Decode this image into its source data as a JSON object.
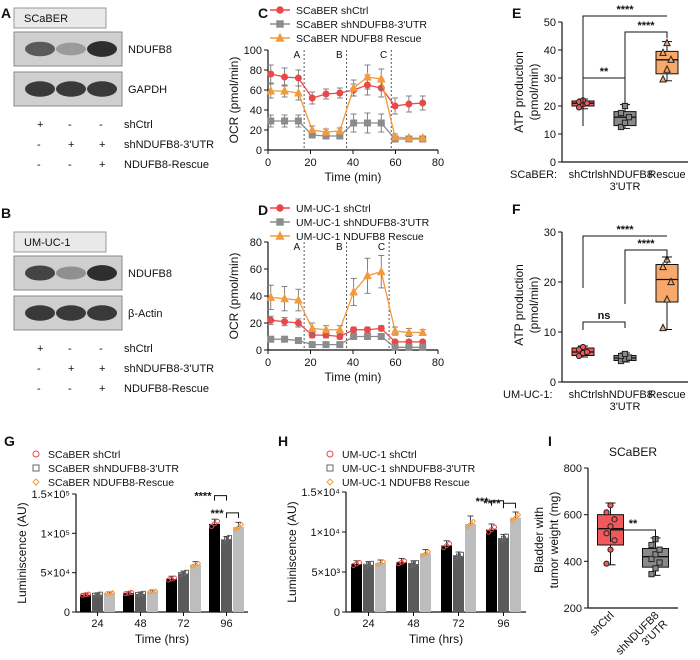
{
  "panels": {
    "A": {
      "letter": "A",
      "cell": "SCaBER",
      "blots": [
        "NDUFB8",
        "GAPDH"
      ],
      "conditions": [
        "shCtrl",
        "shNDUFB8-3'UTR",
        "NDUFB8-Rescue"
      ],
      "matrix": [
        [
          "+",
          "-",
          "-"
        ],
        [
          "-",
          "+",
          "+"
        ],
        [
          "-",
          "-",
          "+"
        ]
      ],
      "band_intensity": [
        [
          0.75,
          0.45,
          0.95
        ],
        [
          0.9,
          0.9,
          0.9
        ]
      ]
    },
    "B": {
      "letter": "B",
      "cell": "UM-UC-1",
      "blots": [
        "NDUFB8",
        "β-Actin"
      ],
      "conditions": [
        "shCtrl",
        "shNDUFB8-3'UTR",
        "NDUFB8-Rescue"
      ],
      "matrix": [
        [
          "+",
          "-",
          "-"
        ],
        [
          "-",
          "+",
          "+"
        ],
        [
          "-",
          "-",
          "+"
        ]
      ],
      "band_intensity": [
        [
          0.85,
          0.5,
          0.95
        ],
        [
          0.9,
          0.9,
          0.9
        ]
      ]
    }
  },
  "colors": {
    "red": "#e8484a",
    "gray": "#8c8c8c",
    "orange": "#f39a3c",
    "boxRed": "#f2595a",
    "boxGray": "#8a8a8a",
    "boxOrange": "#f7a86a",
    "black": "#000000",
    "darkgray": "#5a5a5a",
    "lightgray": "#bdbdbd"
  },
  "chart_data": [
    {
      "id": "C",
      "type": "line",
      "xlabel": "Time (min)",
      "ylabel": "OCR (pmol/min)",
      "xlim": [
        0,
        80
      ],
      "ylim": [
        0,
        100
      ],
      "xticks": [
        0,
        20,
        40,
        60,
        80
      ],
      "yticks": [
        0,
        20,
        40,
        60,
        80,
        100
      ],
      "markers": [
        {
          "label": "A",
          "x": 17
        },
        {
          "label": "B",
          "x": 37
        },
        {
          "label": "C",
          "x": 58
        }
      ],
      "x": [
        1.3,
        7.8,
        14.3,
        20.8,
        27.3,
        33.8,
        40.3,
        46.8,
        53.3,
        59.8,
        66.3,
        72.8
      ],
      "series": [
        {
          "name": "SCaBER shCtrl",
          "color": "red",
          "marker": "circle",
          "values": [
            76,
            73,
            72,
            52,
            56,
            57,
            60,
            65,
            62,
            44,
            46,
            47
          ],
          "err": [
            9,
            9,
            8,
            6,
            5,
            5,
            6,
            10,
            9,
            8,
            8,
            7
          ]
        },
        {
          "name": "SCaBER shNDUFB8-3'UTR",
          "color": "gray",
          "marker": "square",
          "values": [
            29,
            29,
            29,
            15,
            14,
            14,
            27,
            27,
            27,
            11,
            11,
            11
          ],
          "err": [
            6,
            6,
            6,
            3,
            3,
            3,
            9,
            10,
            9,
            2,
            2,
            2
          ]
        },
        {
          "name": "SCaBER NDUFB8 Rescue",
          "color": "orange",
          "marker": "triangle",
          "values": [
            59,
            59,
            57,
            20,
            18,
            19,
            62,
            73,
            71,
            13,
            12,
            12
          ],
          "err": [
            7,
            6,
            7,
            4,
            3,
            3,
            8,
            12,
            10,
            3,
            2,
            2
          ]
        }
      ]
    },
    {
      "id": "D",
      "type": "line",
      "xlabel": "Time (min)",
      "ylabel": "OCR (pmol/min)",
      "xlim": [
        0,
        80
      ],
      "ylim": [
        0,
        80
      ],
      "xticks": [
        0,
        20,
        40,
        60,
        80
      ],
      "yticks": [
        0,
        20,
        40,
        60,
        80
      ],
      "markers": [
        {
          "label": "A",
          "x": 17
        },
        {
          "label": "B",
          "x": 37
        },
        {
          "label": "C",
          "x": 57
        }
      ],
      "x": [
        1.3,
        7.8,
        14.3,
        20.8,
        27.3,
        33.8,
        40.3,
        46.8,
        53.3,
        59.8,
        66.3,
        72.8
      ],
      "series": [
        {
          "name": "UM-UC-1 shCtrl",
          "color": "red",
          "marker": "circle",
          "values": [
            22,
            21,
            20,
            11,
            11,
            10,
            15,
            15,
            16,
            6,
            6,
            6
          ],
          "err": [
            3,
            3,
            3,
            2,
            2,
            2,
            2,
            2,
            2,
            1,
            1,
            1
          ]
        },
        {
          "name": "UM-UC-1 shNDUFB8-3'UTR",
          "color": "gray",
          "marker": "square",
          "values": [
            8,
            8,
            7,
            4,
            4,
            4,
            10,
            10,
            10,
            2,
            2,
            2
          ],
          "err": [
            2,
            2,
            2,
            1,
            1,
            1,
            2,
            2,
            2,
            1,
            1,
            1
          ]
        },
        {
          "name": "UM-UC-1 NDUFB8 Rescue",
          "color": "orange",
          "marker": "triangle",
          "values": [
            39,
            38,
            37,
            16,
            15,
            15,
            43,
            55,
            58,
            14,
            13,
            13
          ],
          "err": [
            9,
            9,
            8,
            4,
            3,
            3,
            10,
            13,
            12,
            3,
            3,
            2
          ]
        }
      ]
    },
    {
      "id": "E",
      "type": "box",
      "ylabel": "ATP production (pmol/min)",
      "ylim": [
        0,
        50
      ],
      "yticks": [
        0,
        10,
        20,
        30,
        40,
        50
      ],
      "group_prefix": "SCaBER:",
      "categories": [
        "shCtrl",
        "shNDUFB8\n3'UTR",
        "Rescue"
      ],
      "boxes": [
        {
          "color": "boxRed",
          "marker": "circle",
          "min": 19,
          "q1": 20,
          "median": 21,
          "q3": 21.8,
          "max": 22.5,
          "points": [
            19.5,
            20.5,
            21,
            21.5,
            22
          ]
        },
        {
          "color": "boxGray",
          "marker": "square",
          "min": 12,
          "q1": 13,
          "median": 16,
          "q3": 18,
          "max": 20.5,
          "points": [
            12.5,
            14,
            16,
            17.5,
            20
          ]
        },
        {
          "color": "boxOrange",
          "marker": "triangle",
          "min": 29,
          "q1": 31.5,
          "median": 36.5,
          "q3": 39.5,
          "max": 43,
          "points": [
            29.5,
            33,
            36.5,
            39,
            42.5
          ]
        }
      ],
      "brackets": [
        {
          "from": 0,
          "to": 2,
          "label": "****"
        },
        {
          "from": 1,
          "to": 2,
          "label": "****"
        },
        {
          "from": 0,
          "to": 1,
          "label": "**"
        }
      ]
    },
    {
      "id": "F",
      "type": "box",
      "ylabel": "ATP production (pmol/min)",
      "ylim": [
        0,
        30
      ],
      "yticks": [
        0,
        10,
        20,
        30
      ],
      "group_prefix": "UM-UC-1:",
      "categories": [
        "shCtrl",
        "shNDUFB8\n3'UTR",
        "Rescue"
      ],
      "boxes": [
        {
          "color": "boxRed",
          "marker": "circle",
          "min": 5,
          "q1": 5.3,
          "median": 6,
          "q3": 6.8,
          "max": 7.2,
          "points": [
            5.2,
            5.8,
            6,
            6.5,
            7
          ]
        },
        {
          "color": "boxGray",
          "marker": "square",
          "min": 4,
          "q1": 4.3,
          "median": 4.8,
          "q3": 5.3,
          "max": 5.8,
          "points": [
            4.2,
            4.6,
            4.9,
            5.2,
            5.6
          ]
        },
        {
          "color": "boxOrange",
          "marker": "triangle",
          "min": 10.5,
          "q1": 16,
          "median": 20.5,
          "q3": 23.5,
          "max": 25,
          "points": [
            10.8,
            16.5,
            20,
            23,
            24.5
          ]
        }
      ],
      "brackets": [
        {
          "from": 0,
          "to": 2,
          "label": "****"
        },
        {
          "from": 1,
          "to": 2,
          "label": "****"
        },
        {
          "from": 0,
          "to": 1,
          "label": "ns"
        }
      ]
    },
    {
      "id": "G",
      "type": "bar",
      "xlabel": "Time (hrs)",
      "ylabel": "Luminiscence (AU)",
      "ylim": [
        0,
        150000
      ],
      "yticks": [
        0,
        50000,
        100000,
        150000
      ],
      "ytick_labels": [
        "0",
        "5×10⁴",
        "1×10⁵",
        "1.5×10⁵"
      ],
      "categories": [
        "24",
        "48",
        "72",
        "96"
      ],
      "series": [
        {
          "name": "SCaBER shCtrl",
          "color": "black",
          "marker": "circle",
          "values": [
            22000,
            24000,
            42000,
            112000
          ],
          "err": [
            1500,
            1500,
            3500,
            6000
          ]
        },
        {
          "name": "SCaBER shNDUFB8-3'UTR",
          "color": "darkgray",
          "marker": "square",
          "values": [
            22000,
            23000,
            49000,
            92000
          ],
          "err": [
            1500,
            1500,
            3000,
            4000
          ]
        },
        {
          "name": "SCaBER NDUFB8-Rescue",
          "color": "lightgray",
          "marker": "diamond",
          "values": [
            24000,
            26000,
            60000,
            108000
          ],
          "err": [
            1500,
            2000,
            4000,
            6000
          ]
        }
      ],
      "brackets": [
        {
          "cat": 3,
          "from": 0,
          "to": 1,
          "label": "****"
        },
        {
          "cat": 3,
          "from": 1,
          "to": 2,
          "label": "***"
        }
      ]
    },
    {
      "id": "H",
      "type": "bar",
      "xlabel": "Time (hrs)",
      "ylabel": "Luminiscence (AU)",
      "ylim": [
        0,
        15000
      ],
      "yticks": [
        0,
        5000,
        10000,
        15000
      ],
      "ytick_labels": [
        "0",
        "5×10³",
        "1×10⁴",
        "1.5×10⁴"
      ],
      "categories": [
        "24",
        "48",
        "72",
        "96"
      ],
      "series": [
        {
          "name": "UM-UC-1 shCtrl",
          "color": "black",
          "marker": "circle",
          "values": [
            6000,
            6200,
            8300,
            10300
          ],
          "err": [
            400,
            500,
            600,
            700
          ]
        },
        {
          "name": "UM-UC-1 shNDUFB8-3'UTR",
          "color": "darkgray",
          "marker": "square",
          "values": [
            5900,
            6000,
            7000,
            9200
          ],
          "err": [
            400,
            400,
            500,
            500
          ]
        },
        {
          "name": "UM-UC-1 NDUFB8 Rescue",
          "color": "lightgray",
          "marker": "diamond",
          "values": [
            6100,
            7300,
            11000,
            11800
          ],
          "err": [
            400,
            500,
            1000,
            700
          ]
        }
      ],
      "brackets": [
        {
          "cat": 3,
          "from": 0,
          "to": 1,
          "label": "***"
        },
        {
          "cat": 3,
          "from": 1,
          "to": 2,
          "label": "****"
        }
      ]
    },
    {
      "id": "I",
      "type": "box",
      "title": "SCaBER",
      "ylabel": "Bladder with tumor weight (mg)",
      "ylim": [
        200,
        800
      ],
      "yticks": [
        200,
        400,
        600,
        800
      ],
      "categories": [
        "shCtrl",
        "shNDUFB8\n3'UTR"
      ],
      "boxes": [
        {
          "color": "boxRed",
          "marker": "circle",
          "min": 385,
          "q1": 470,
          "median": 540,
          "q3": 600,
          "max": 650,
          "points": [
            390,
            450,
            490,
            520,
            550,
            580,
            610,
            640
          ]
        },
        {
          "color": "boxGray",
          "marker": "square",
          "min": 340,
          "q1": 375,
          "median": 420,
          "q3": 455,
          "max": 500,
          "points": [
            345,
            370,
            395,
            410,
            430,
            450,
            470,
            495
          ]
        }
      ],
      "brackets": [
        {
          "from": 0,
          "to": 1,
          "label": "**"
        }
      ]
    }
  ]
}
